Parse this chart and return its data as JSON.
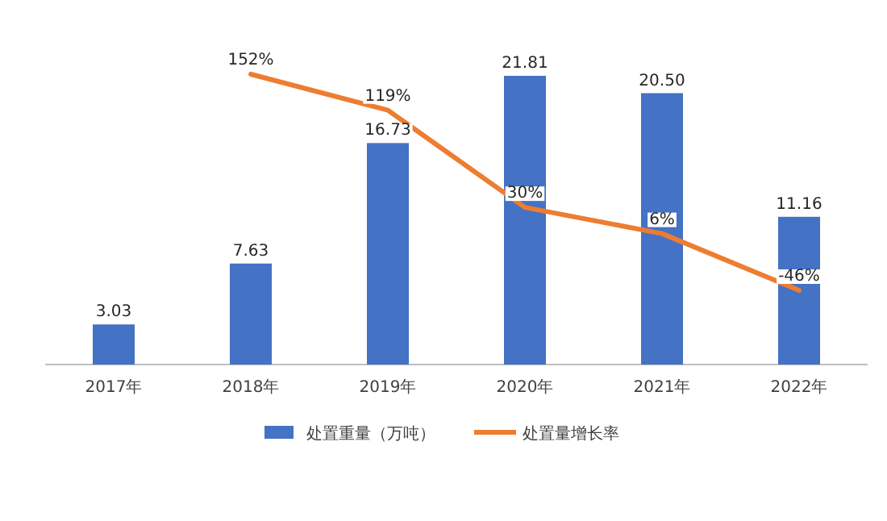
{
  "chart_data": {
    "type": "bar",
    "categories": [
      "2017年",
      "2018年",
      "2019年",
      "2020年",
      "2021年",
      "2022年"
    ],
    "legend": "bottom",
    "tick_labels": "x",
    "series": [
      {
        "name": "处置重量（万吨）",
        "color": "#4472c4",
        "values": [
          3.03,
          7.63,
          16.73,
          21.81,
          20.5,
          11.16
        ],
        "value_labels": [
          "3.03",
          "7.63",
          "16.73",
          "21.81",
          "20.50",
          "11.16"
        ]
      },
      {
        "name": "处置量增长率",
        "type": "line",
        "axis": "y2",
        "color": "#ed7d31",
        "values": [
          null,
          152,
          119,
          30,
          6,
          -46
        ],
        "value_labels": [
          null,
          "152%",
          "119%",
          "30%",
          "6%",
          "-46%"
        ]
      }
    ]
  }
}
